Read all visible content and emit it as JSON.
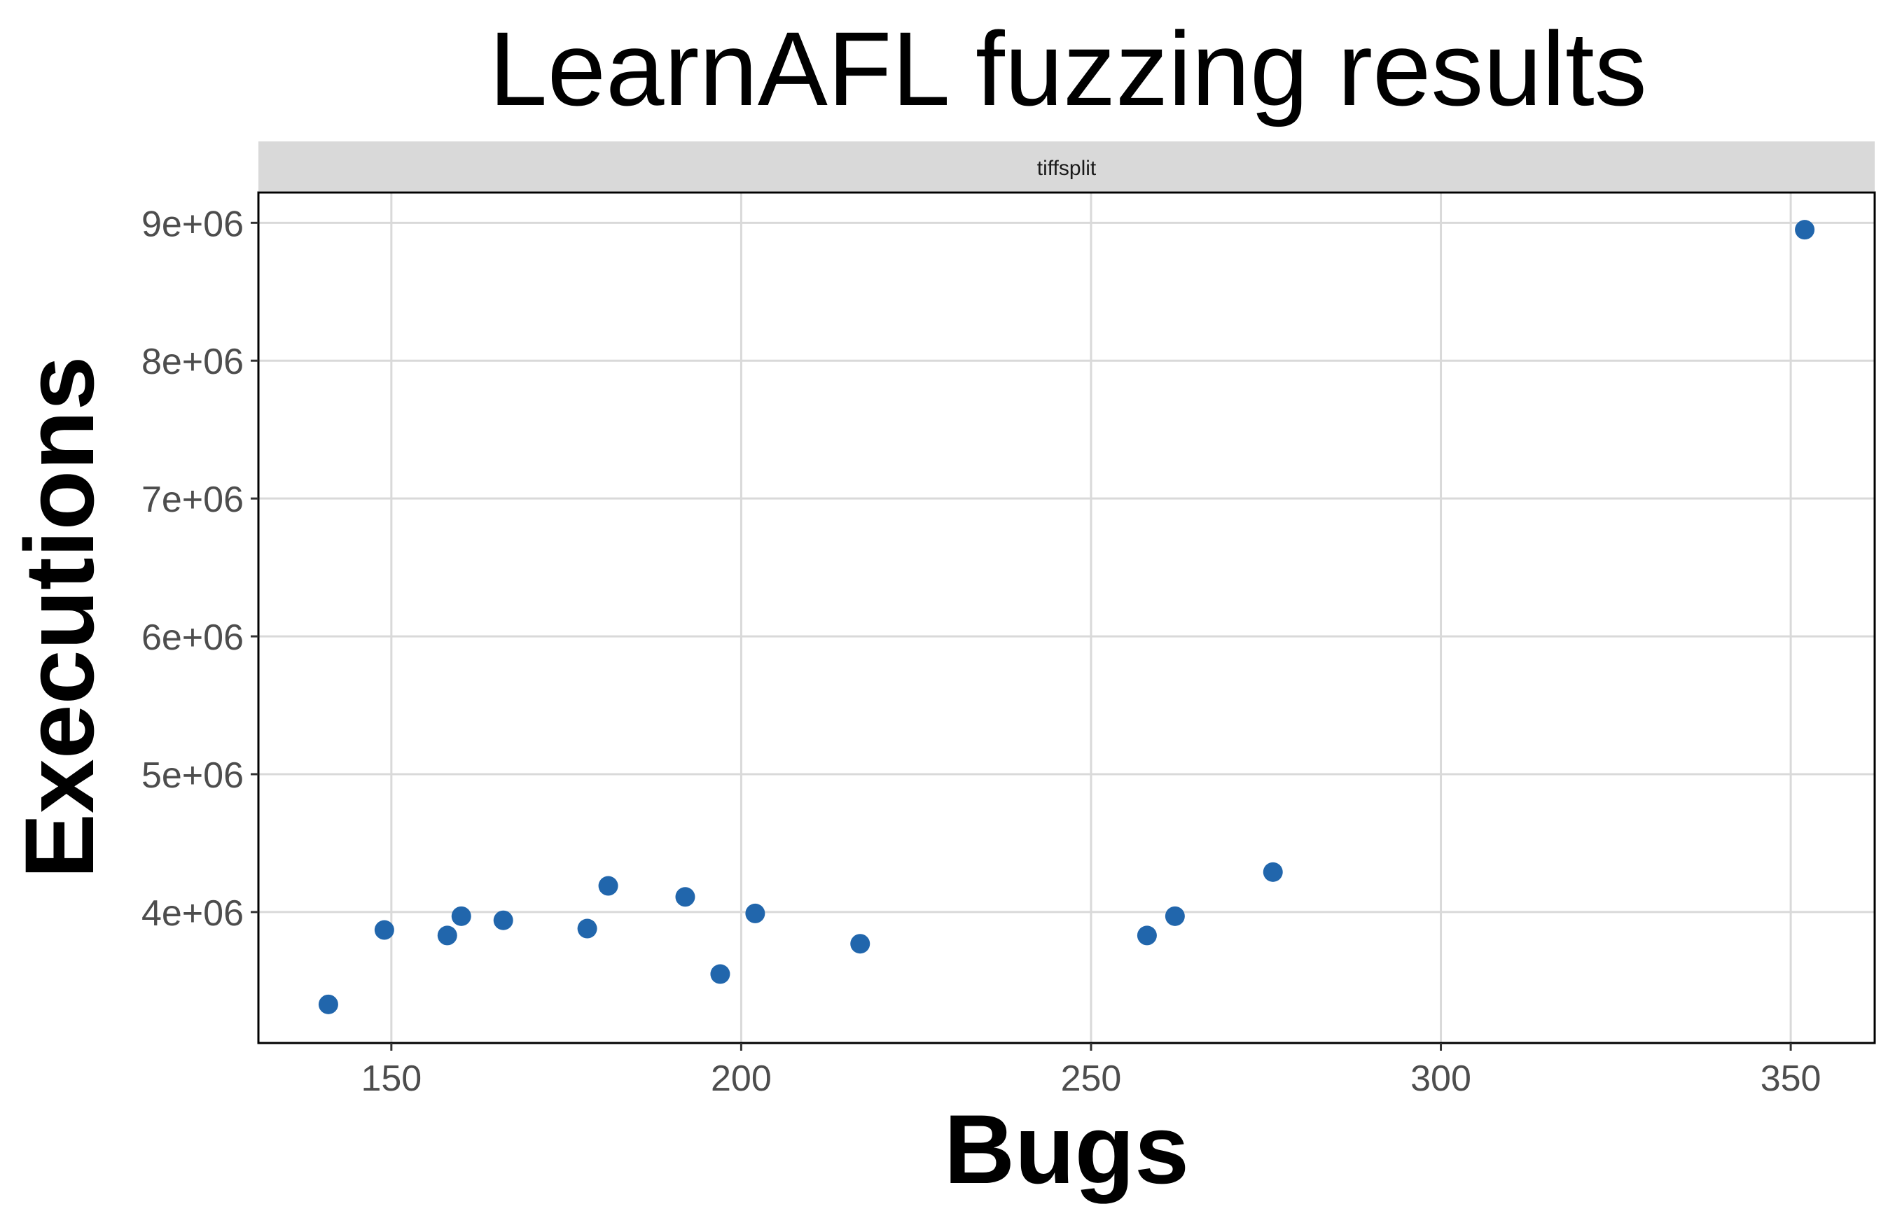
{
  "chart_data": {
    "type": "scatter",
    "title": "LearnAFL fuzzing results",
    "facet": "tiffsplit",
    "xlabel": "Bugs",
    "ylabel": "Executions",
    "xlim": [
      131,
      362
    ],
    "ylim": [
      3050000,
      9220000
    ],
    "x_ticks": [
      150,
      200,
      250,
      300,
      350
    ],
    "x_tick_labels": [
      "150",
      "200",
      "250",
      "300",
      "350"
    ],
    "y_ticks": [
      4000000,
      5000000,
      6000000,
      7000000,
      8000000,
      9000000
    ],
    "y_tick_labels": [
      "4e+06",
      "5e+06",
      "6e+06",
      "7e+06",
      "8e+06",
      "9e+06"
    ],
    "grid": true,
    "point_color": "#2166AC",
    "points": [
      {
        "x": 141,
        "y": 3330000
      },
      {
        "x": 149,
        "y": 3870000
      },
      {
        "x": 158,
        "y": 3830000
      },
      {
        "x": 160,
        "y": 3970000
      },
      {
        "x": 166,
        "y": 3940000
      },
      {
        "x": 178,
        "y": 3880000
      },
      {
        "x": 181,
        "y": 4190000
      },
      {
        "x": 192,
        "y": 4110000
      },
      {
        "x": 197,
        "y": 3550000
      },
      {
        "x": 202,
        "y": 3990000
      },
      {
        "x": 217,
        "y": 3770000
      },
      {
        "x": 258,
        "y": 3830000
      },
      {
        "x": 262,
        "y": 3970000
      },
      {
        "x": 276,
        "y": 4290000
      },
      {
        "x": 352,
        "y": 8950000
      }
    ]
  }
}
